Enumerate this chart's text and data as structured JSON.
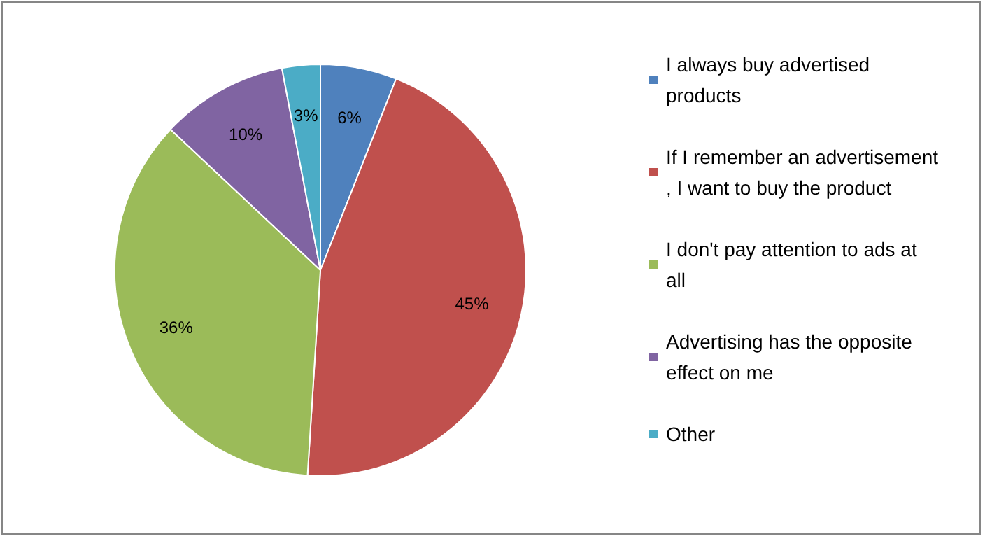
{
  "chart_data": {
    "type": "pie",
    "categories": [
      "I always buy advertised products",
      "If I remember an advertisement, I want to buy the product",
      "I don't pay attention to ads at all",
      "Advertising has the opposite effect on me",
      "Other"
    ],
    "values": [
      6,
      45,
      36,
      10,
      3
    ],
    "colors": [
      "#4f81bd",
      "#c0504d",
      "#9bbb59",
      "#8064a2",
      "#4bacc6"
    ],
    "value_labels": [
      "6%",
      "45%",
      "36%",
      "10%",
      "3%"
    ],
    "legend": "right"
  }
}
